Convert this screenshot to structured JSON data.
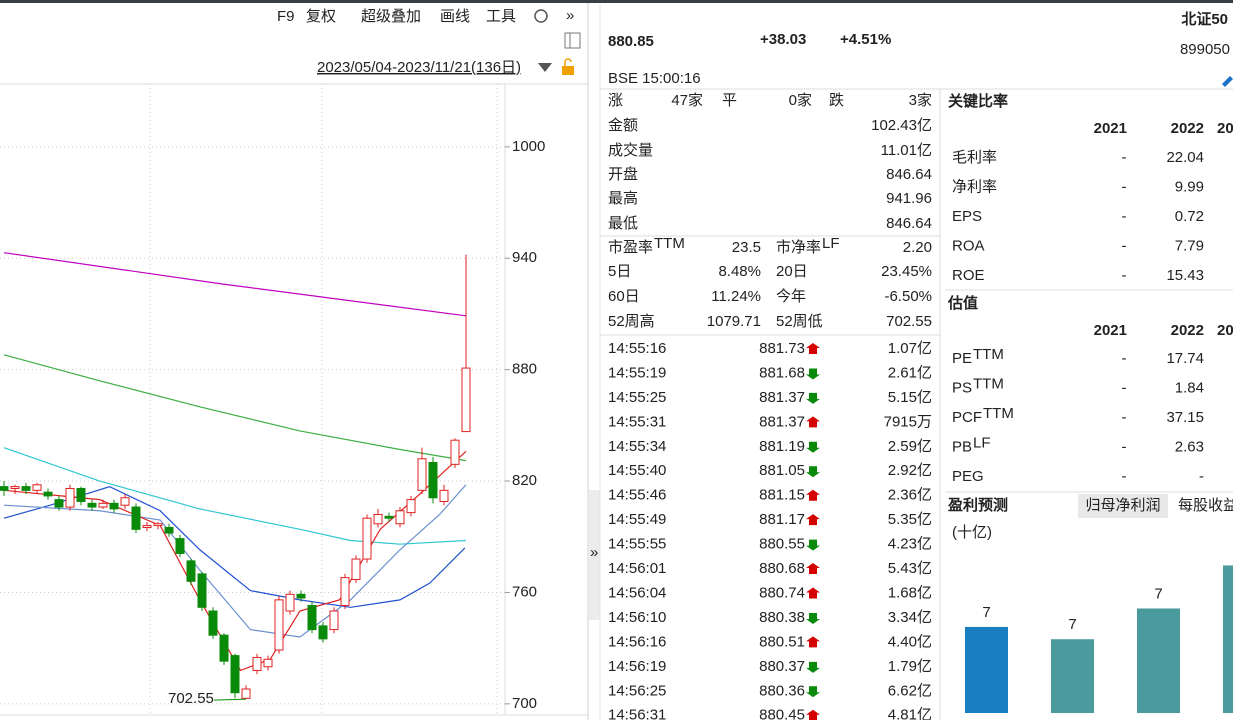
{
  "toolbar": {
    "items": [
      "F9",
      "复权",
      "超级叠加",
      "画线",
      "工具"
    ],
    "range": "2023/05/04-2023/11/21(136日)"
  },
  "kline": {
    "ylim": [
      694,
      1036
    ],
    "yticks": [
      700,
      760,
      820,
      880,
      940,
      1000
    ],
    "up_color": "#e02020",
    "down_color": "#0a8a0a",
    "min_label": "702.55",
    "candles": [
      {
        "open": 817,
        "high": 820,
        "low": 812,
        "close": 815
      },
      {
        "open": 816,
        "high": 818,
        "low": 813,
        "close": 817
      },
      {
        "open": 817,
        "high": 819,
        "low": 813,
        "close": 815
      },
      {
        "open": 815,
        "high": 819,
        "low": 813,
        "close": 818
      },
      {
        "open": 814,
        "high": 816,
        "low": 810,
        "close": 812
      },
      {
        "open": 810,
        "high": 812,
        "low": 804,
        "close": 806
      },
      {
        "open": 806,
        "high": 818,
        "low": 804,
        "close": 816
      },
      {
        "open": 816,
        "high": 817,
        "low": 807,
        "close": 809
      },
      {
        "open": 808,
        "high": 810,
        "low": 804,
        "close": 806
      },
      {
        "open": 806,
        "high": 810,
        "low": 805,
        "close": 808
      },
      {
        "open": 808,
        "high": 810,
        "low": 803,
        "close": 805
      },
      {
        "open": 807,
        "high": 813,
        "low": 805,
        "close": 811
      },
      {
        "open": 806,
        "high": 808,
        "low": 792,
        "close": 794
      },
      {
        "open": 795,
        "high": 798,
        "low": 793,
        "close": 796
      },
      {
        "open": 796,
        "high": 798,
        "low": 794,
        "close": 797
      },
      {
        "open": 795,
        "high": 797,
        "low": 790,
        "close": 792
      },
      {
        "open": 789,
        "high": 791,
        "low": 779,
        "close": 781
      },
      {
        "open": 777,
        "high": 778,
        "low": 764,
        "close": 766
      },
      {
        "open": 770,
        "high": 771,
        "low": 750,
        "close": 752
      },
      {
        "open": 750,
        "high": 752,
        "low": 735,
        "close": 737
      },
      {
        "open": 737,
        "high": 738,
        "low": 721,
        "close": 723
      },
      {
        "open": 726,
        "high": 727,
        "low": 703,
        "close": 706
      },
      {
        "open": 703,
        "high": 710,
        "low": 702.55,
        "close": 708
      },
      {
        "open": 718,
        "high": 727,
        "low": 716,
        "close": 725
      },
      {
        "open": 720,
        "high": 726,
        "low": 718,
        "close": 724
      },
      {
        "open": 729,
        "high": 758,
        "low": 727,
        "close": 756
      },
      {
        "open": 750,
        "high": 761,
        "low": 748,
        "close": 759
      },
      {
        "open": 759,
        "high": 761,
        "low": 755,
        "close": 757
      },
      {
        "open": 753,
        "high": 755,
        "low": 738,
        "close": 740
      },
      {
        "open": 742,
        "high": 744,
        "low": 733,
        "close": 735
      },
      {
        "open": 740,
        "high": 752,
        "low": 738,
        "close": 750
      },
      {
        "open": 753,
        "high": 770,
        "low": 751,
        "close": 768
      },
      {
        "open": 767,
        "high": 780,
        "low": 765,
        "close": 778
      },
      {
        "open": 778,
        "high": 802,
        "low": 776,
        "close": 800
      },
      {
        "open": 797,
        "high": 805,
        "low": 795,
        "close": 802
      },
      {
        "open": 801,
        "high": 803,
        "low": 798,
        "close": 800
      },
      {
        "open": 797,
        "high": 806,
        "low": 795,
        "close": 804
      },
      {
        "open": 803,
        "high": 812,
        "low": 801,
        "close": 810
      },
      {
        "open": 815,
        "high": 838,
        "low": 813,
        "close": 832
      },
      {
        "open": 830,
        "high": 833,
        "low": 808,
        "close": 811
      },
      {
        "open": 809,
        "high": 818,
        "low": 807,
        "close": 815
      },
      {
        "open": 829,
        "high": 843,
        "low": 827,
        "close": 842
      },
      {
        "open": 846.64,
        "high": 941.96,
        "low": 846.64,
        "close": 880.85
      }
    ],
    "ma": [
      {
        "color": "#c000c0",
        "x": [
          0,
          20,
          42
        ],
        "values": [
          943,
          926,
          909
        ]
      },
      {
        "color": "#3cb043",
        "x": [
          0,
          8.7,
          17.8,
          26.9,
          36,
          42
        ],
        "values": [
          888,
          874,
          860,
          847,
          837,
          831
        ]
      },
      {
        "color": "#30c8d0",
        "x": [
          0,
          8.7,
          17.8,
          26.9,
          31.5,
          36,
          42
        ],
        "values": [
          838,
          820,
          805,
          794,
          788,
          786,
          788
        ]
      },
      {
        "color": "#2050d0",
        "x": [
          0,
          4.2,
          9.6,
          14.2,
          17.8,
          22.4,
          26.9,
          31.5,
          36,
          38.7,
          41.9
        ],
        "values": [
          800,
          807,
          817,
          804,
          783,
          761,
          756,
          752,
          756,
          765,
          784
        ]
      },
      {
        "color": "#6a8fd0",
        "x": [
          0,
          8.7,
          14.2,
          17.8,
          22.4,
          26.9,
          31.5,
          36,
          39.6,
          42
        ],
        "values": [
          807,
          804,
          799,
          772,
          740,
          736,
          756,
          783,
          802,
          818
        ]
      },
      {
        "color": "#e02020",
        "x": [
          0,
          8.7,
          14.2,
          17.8,
          21.5,
          24.2,
          26.9,
          30.5,
          34.2,
          37.8,
          42
        ],
        "values": [
          815,
          810,
          796,
          756,
          718,
          724,
          750,
          756,
          794,
          813,
          836
        ]
      }
    ]
  },
  "quote": {
    "price": "880.85",
    "change": "+38.03",
    "change_pct": "+4.51%",
    "status": "BSE 15:00:16",
    "index_name": "北证50",
    "code": "899050"
  },
  "breadth": [
    {
      "label": "涨",
      "value": "47家",
      "color": "#d40000"
    },
    {
      "label": "平",
      "value": "0家",
      "color": "#222222"
    },
    {
      "label": "跌",
      "value": "3家",
      "color": "#0a8a0a"
    }
  ],
  "stats": [
    [
      {
        "label": "金额",
        "value": "102.43亿",
        "color": "#222222"
      }
    ],
    [
      {
        "label": "成交量",
        "value": "11.01亿",
        "color": "#222222"
      }
    ],
    [
      {
        "label": "开盘",
        "value": "846.64",
        "color": "#d40000"
      }
    ],
    [
      {
        "label": "最高",
        "value": "941.96",
        "color": "#d40000"
      }
    ],
    [
      {
        "label": "最低",
        "value": "846.64",
        "color": "#d40000"
      }
    ],
    [
      {
        "label": "市盈率",
        "sup": "TTM",
        "value": "23.5",
        "color": "#222222"
      },
      {
        "label": "市净率",
        "sup": "LF",
        "value": "2.20",
        "color": "#222222"
      }
    ],
    [
      {
        "label": "5日",
        "value": "8.48%",
        "color": "#d40000"
      },
      {
        "label": "20日",
        "value": "23.45%",
        "color": "#d40000"
      }
    ],
    [
      {
        "label": "60日",
        "value": "11.24%",
        "color": "#d40000"
      },
      {
        "label": "今年",
        "value": "-6.50%",
        "color": "#0a8a0a"
      }
    ],
    [
      {
        "label": "52周高",
        "value": "1079.71",
        "color": "#222222"
      },
      {
        "label": "52周低",
        "value": "702.55",
        "color": "#222222"
      }
    ]
  ],
  "trades": [
    {
      "time": "14:55:16",
      "price": "881.73",
      "dir": "up",
      "volume": "1.07亿"
    },
    {
      "time": "14:55:19",
      "price": "881.68",
      "dir": "down",
      "volume": "2.61亿"
    },
    {
      "time": "14:55:25",
      "price": "881.37",
      "dir": "down",
      "volume": "5.15亿"
    },
    {
      "time": "14:55:31",
      "price": "881.37",
      "dir": "up",
      "volume": "7915万"
    },
    {
      "time": "14:55:34",
      "price": "881.19",
      "dir": "down",
      "volume": "2.59亿"
    },
    {
      "time": "14:55:40",
      "price": "881.05",
      "dir": "down",
      "volume": "2.92亿"
    },
    {
      "time": "14:55:46",
      "price": "881.15",
      "dir": "up",
      "volume": "2.36亿"
    },
    {
      "time": "14:55:49",
      "price": "881.17",
      "dir": "up",
      "volume": "5.35亿"
    },
    {
      "time": "14:55:55",
      "price": "880.55",
      "dir": "down",
      "volume": "4.23亿"
    },
    {
      "time": "14:56:01",
      "price": "880.68",
      "dir": "up",
      "volume": "5.43亿"
    },
    {
      "time": "14:56:04",
      "price": "880.74",
      "dir": "up",
      "volume": "1.68亿"
    },
    {
      "time": "14:56:10",
      "price": "880.38",
      "dir": "down",
      "volume": "3.34亿"
    },
    {
      "time": "14:56:16",
      "price": "880.51",
      "dir": "up",
      "volume": "4.40亿"
    },
    {
      "time": "14:56:19",
      "price": "880.37",
      "dir": "down",
      "volume": "1.79亿"
    },
    {
      "time": "14:56:25",
      "price": "880.36",
      "dir": "down",
      "volume": "6.62亿"
    },
    {
      "time": "14:56:31",
      "price": "880.45",
      "dir": "up",
      "volume": "4.81亿"
    }
  ],
  "ratios": {
    "title": "关键比率",
    "columns": [
      "2021",
      "2022",
      "20"
    ],
    "rows": [
      {
        "label": "毛利率",
        "values": [
          "-",
          "22.04"
        ]
      },
      {
        "label": "净利率",
        "values": [
          "-",
          "9.99"
        ]
      },
      {
        "label": "EPS",
        "values": [
          "-",
          "0.72"
        ]
      },
      {
        "label": "ROA",
        "values": [
          "-",
          "7.79"
        ]
      },
      {
        "label": "ROE",
        "values": [
          "-",
          "15.43"
        ]
      }
    ]
  },
  "valuation": {
    "title": "估值",
    "columns": [
      "2021",
      "2022",
      "20"
    ],
    "rows": [
      {
        "label": "PE",
        "sup": "TTM",
        "values": [
          "-",
          "17.74"
        ]
      },
      {
        "label": "PS",
        "sup": "TTM",
        "values": [
          "-",
          "1.84"
        ]
      },
      {
        "label": "PCF",
        "sup": "TTM",
        "values": [
          "-",
          "37.15"
        ]
      },
      {
        "label": "PB",
        "sup": "LF",
        "values": [
          "-",
          "2.63"
        ]
      },
      {
        "label": "PEG",
        "values": [
          "-",
          "-"
        ]
      }
    ]
  },
  "forecast": {
    "title": "盈利预测",
    "tabs": [
      "归母净利润",
      "每股收益"
    ],
    "unit": "(十亿)",
    "type": "bar",
    "ylim": [
      5.5,
      8.2
    ],
    "values": [
      6.9,
      6.7,
      7.2,
      7.9
    ],
    "value_labels": [
      "7",
      "7",
      "7",
      null
    ],
    "colors": [
      "#1a7fc1",
      "#4a9a9e",
      "#4a9a9e",
      "#4a9a9e"
    ]
  }
}
